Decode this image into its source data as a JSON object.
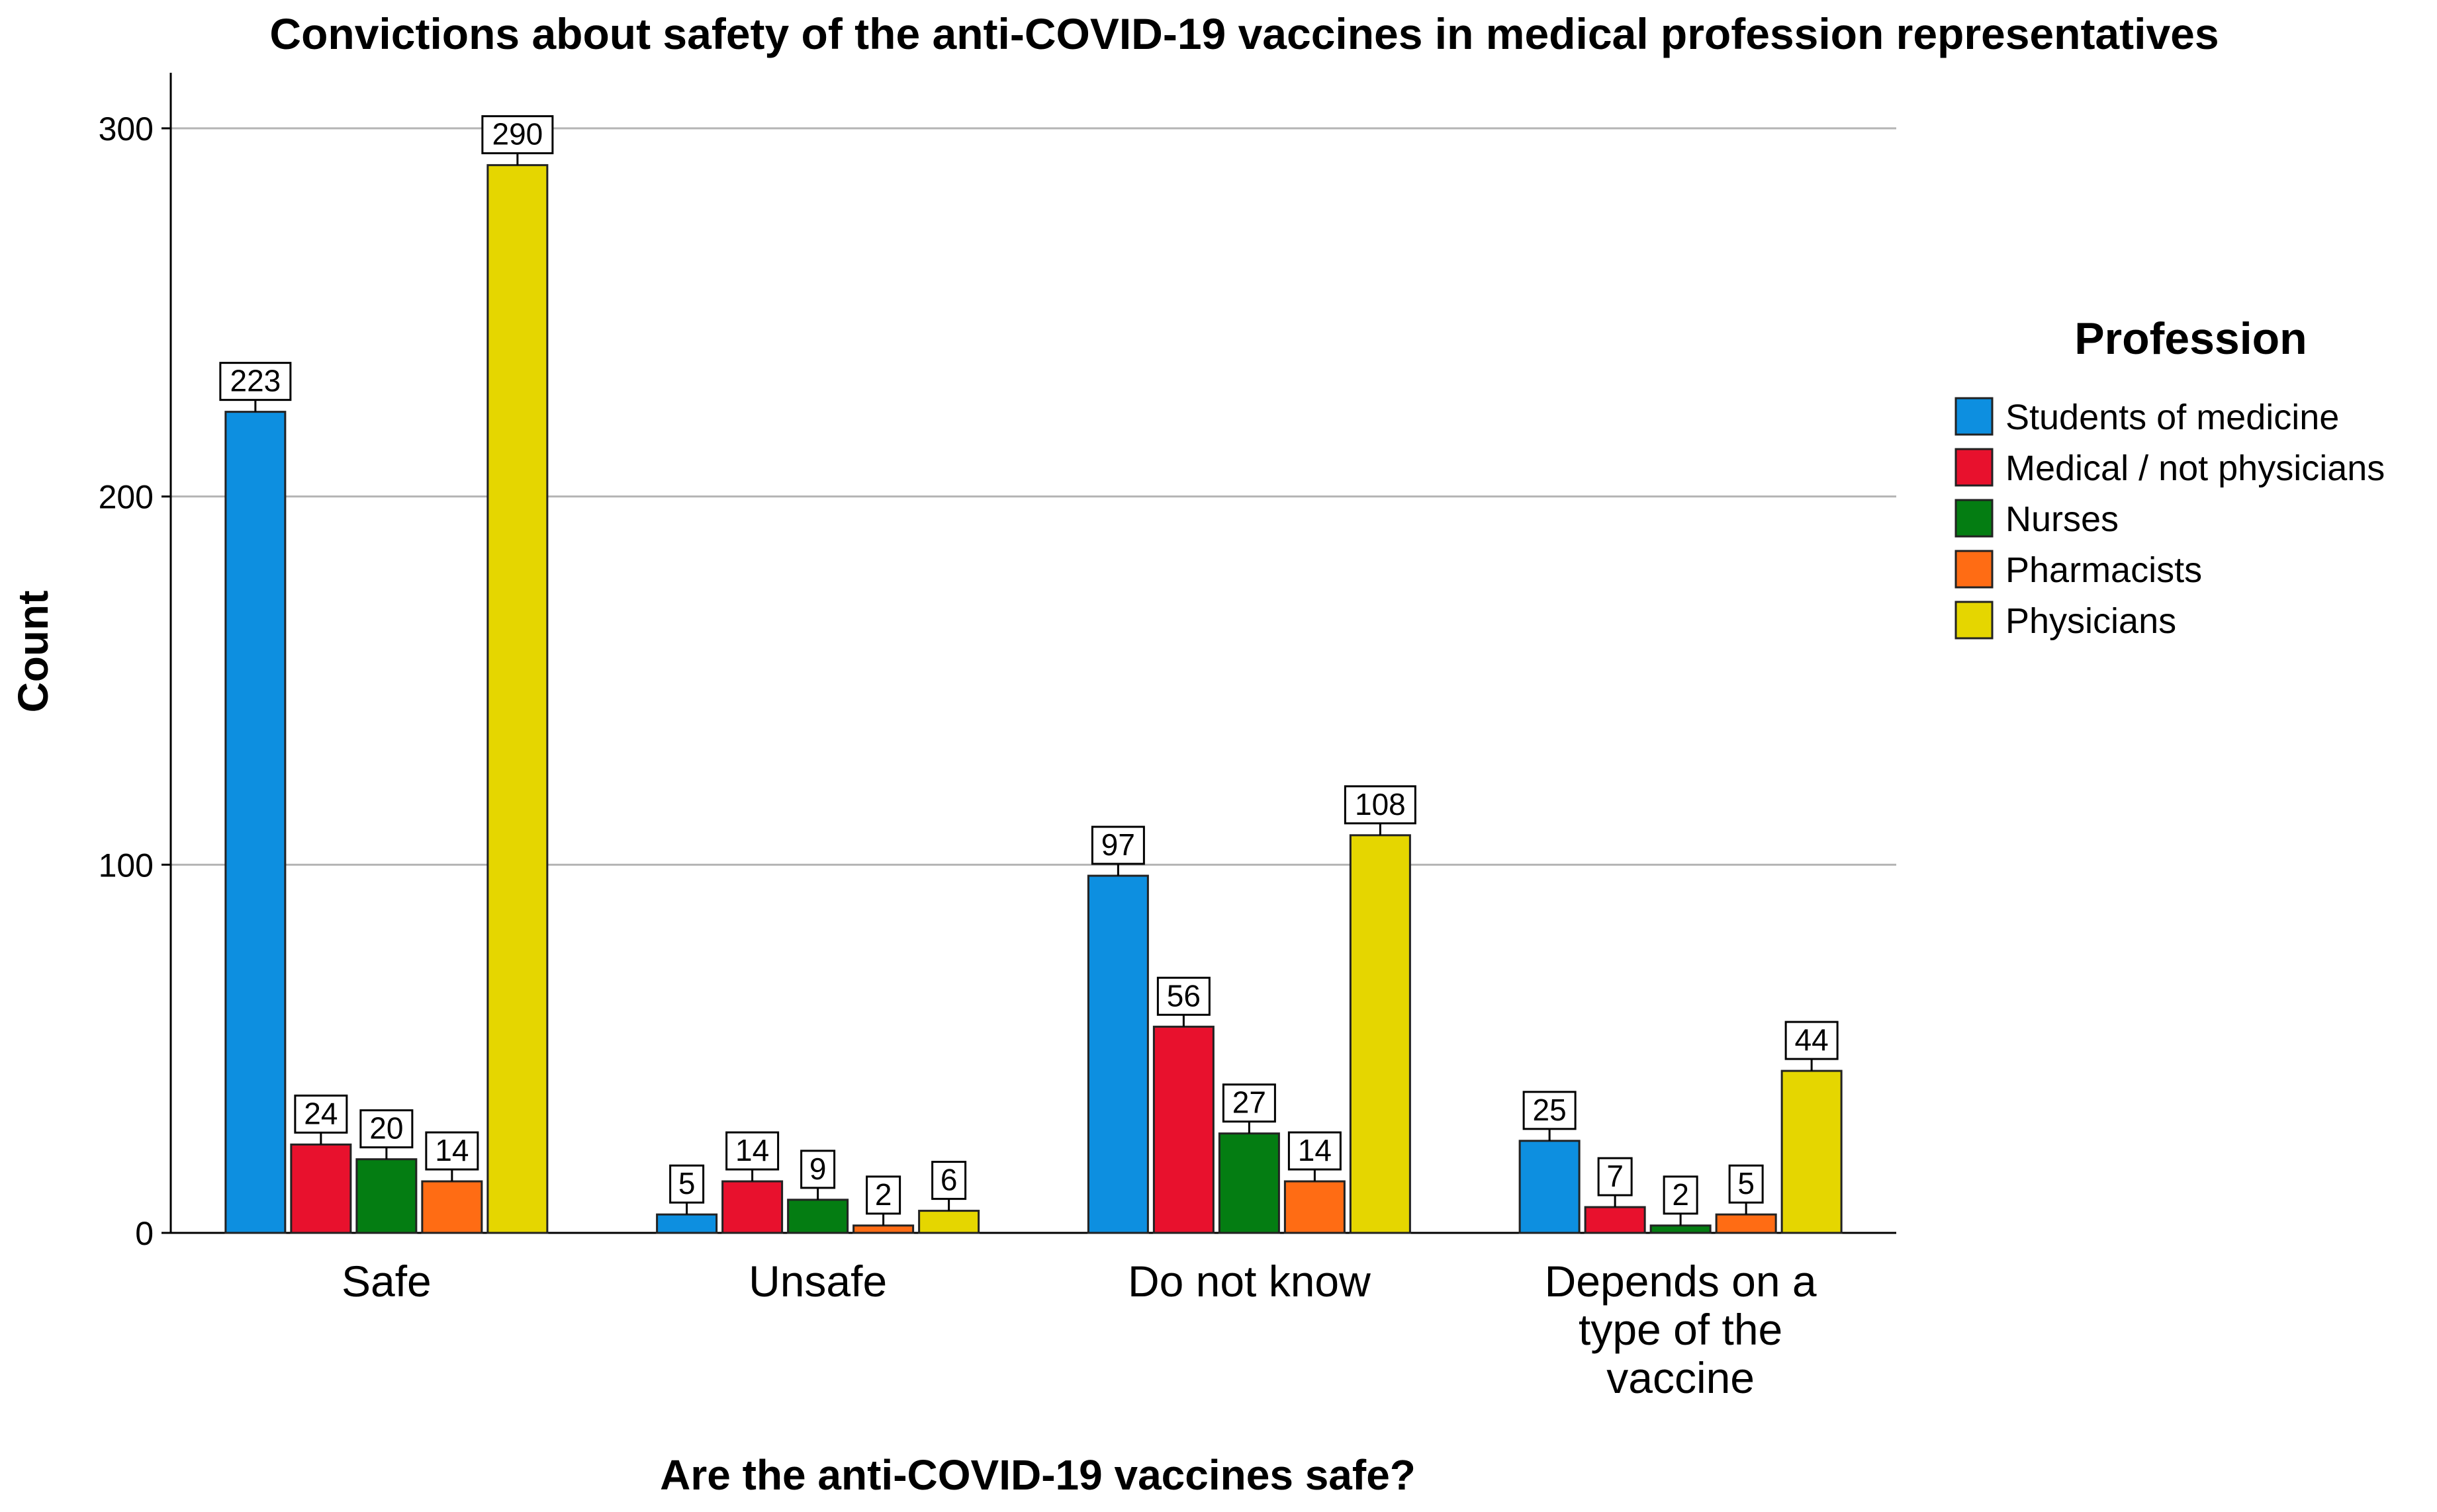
{
  "chart_data": {
    "type": "bar",
    "title": "Convictions about safety of the anti-COVID-19 vaccines in medical profession representatives",
    "xlabel": "Are the anti-COVID-19 vaccines safe?",
    "ylabel": "Count",
    "ylim": [
      0,
      310
    ],
    "yticks": [
      0,
      100,
      200,
      300
    ],
    "grid": true,
    "legend_title": "Profession",
    "legend_position": "right",
    "categories": [
      [
        "Safe"
      ],
      [
        "Unsafe"
      ],
      [
        "Do not know"
      ],
      [
        "Depends on a",
        "type of the",
        "vaccine"
      ]
    ],
    "series": [
      {
        "name": "Students of medicine",
        "color": "#0d8fe0",
        "values": [
          223,
          5,
          97,
          25
        ]
      },
      {
        "name": "Medical / not physicians",
        "color": "#e8112d",
        "values": [
          24,
          14,
          56,
          7
        ]
      },
      {
        "name": "Nurses",
        "color": "#047d12",
        "values": [
          20,
          9,
          27,
          2
        ]
      },
      {
        "name": "Pharmacists",
        "color": "#ff6c14",
        "values": [
          14,
          2,
          14,
          5
        ]
      },
      {
        "name": "Physicians",
        "color": "#e5d600",
        "values": [
          290,
          6,
          108,
          44
        ]
      }
    ]
  }
}
